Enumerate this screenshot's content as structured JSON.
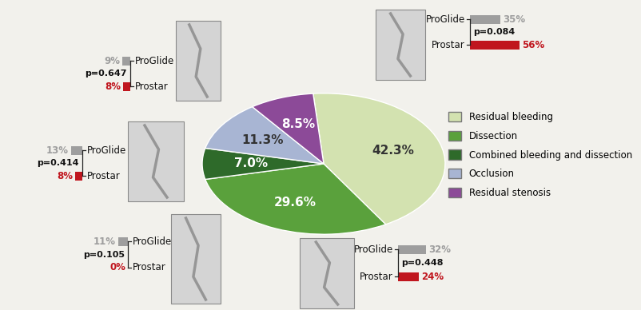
{
  "chart_data": {
    "type": "pie",
    "categories": [
      "Residual bleeding",
      "Dissection",
      "Combined bleeding and dissection",
      "Occlusion",
      "Residual stenosis"
    ],
    "values": [
      42.3,
      29.6,
      7.0,
      11.3,
      8.5
    ],
    "value_labels": [
      "42.3%",
      "29.6%",
      "7.0%",
      "11.3%",
      "8.5%"
    ],
    "colors": [
      "#d3e2b0",
      "#5aa13c",
      "#2e6a2a",
      "#a8b5d3",
      "#8c4a98"
    ],
    "data_labels": true,
    "legend": "right",
    "comparisons": [
      {
        "category": "Residual bleeding",
        "groups": [
          "ProGlide",
          "Prostar"
        ],
        "values": [
          35,
          56
        ],
        "value_labels": [
          "35%",
          "56%"
        ],
        "colors": [
          "#9e9e9e",
          "#c0161e"
        ],
        "p_value": 0.084,
        "p_value_label": "p=0.084"
      },
      {
        "category": "Dissection",
        "groups": [
          "ProGlide",
          "Prostar"
        ],
        "values": [
          32,
          24
        ],
        "value_labels": [
          "32%",
          "24%"
        ],
        "colors": [
          "#9e9e9e",
          "#c0161e"
        ],
        "p_value": 0.448,
        "p_value_label": "p=0.448"
      },
      {
        "category": "Combined bleeding and dissection",
        "groups": [
          "ProGlide",
          "Prostar"
        ],
        "values": [
          11,
          0
        ],
        "value_labels": [
          "11%",
          "0%"
        ],
        "colors": [
          "#9e9e9e",
          "#c0161e"
        ],
        "p_value": 0.105,
        "p_value_label": "p=0.105"
      },
      {
        "category": "Occlusion",
        "groups": [
          "ProGlide",
          "Prostar"
        ],
        "values": [
          13,
          8
        ],
        "value_labels": [
          "13%",
          "8%"
        ],
        "colors": [
          "#9e9e9e",
          "#c0161e"
        ],
        "p_value": 0.414,
        "p_value_label": "p=0.414"
      },
      {
        "category": "Residual stenosis",
        "groups": [
          "ProGlide",
          "Prostar"
        ],
        "values": [
          9,
          8
        ],
        "value_labels": [
          "9%",
          "8%"
        ],
        "colors": [
          "#9e9e9e",
          "#c0161e"
        ],
        "p_value": 0.647,
        "p_value_label": "p=0.647"
      }
    ]
  }
}
